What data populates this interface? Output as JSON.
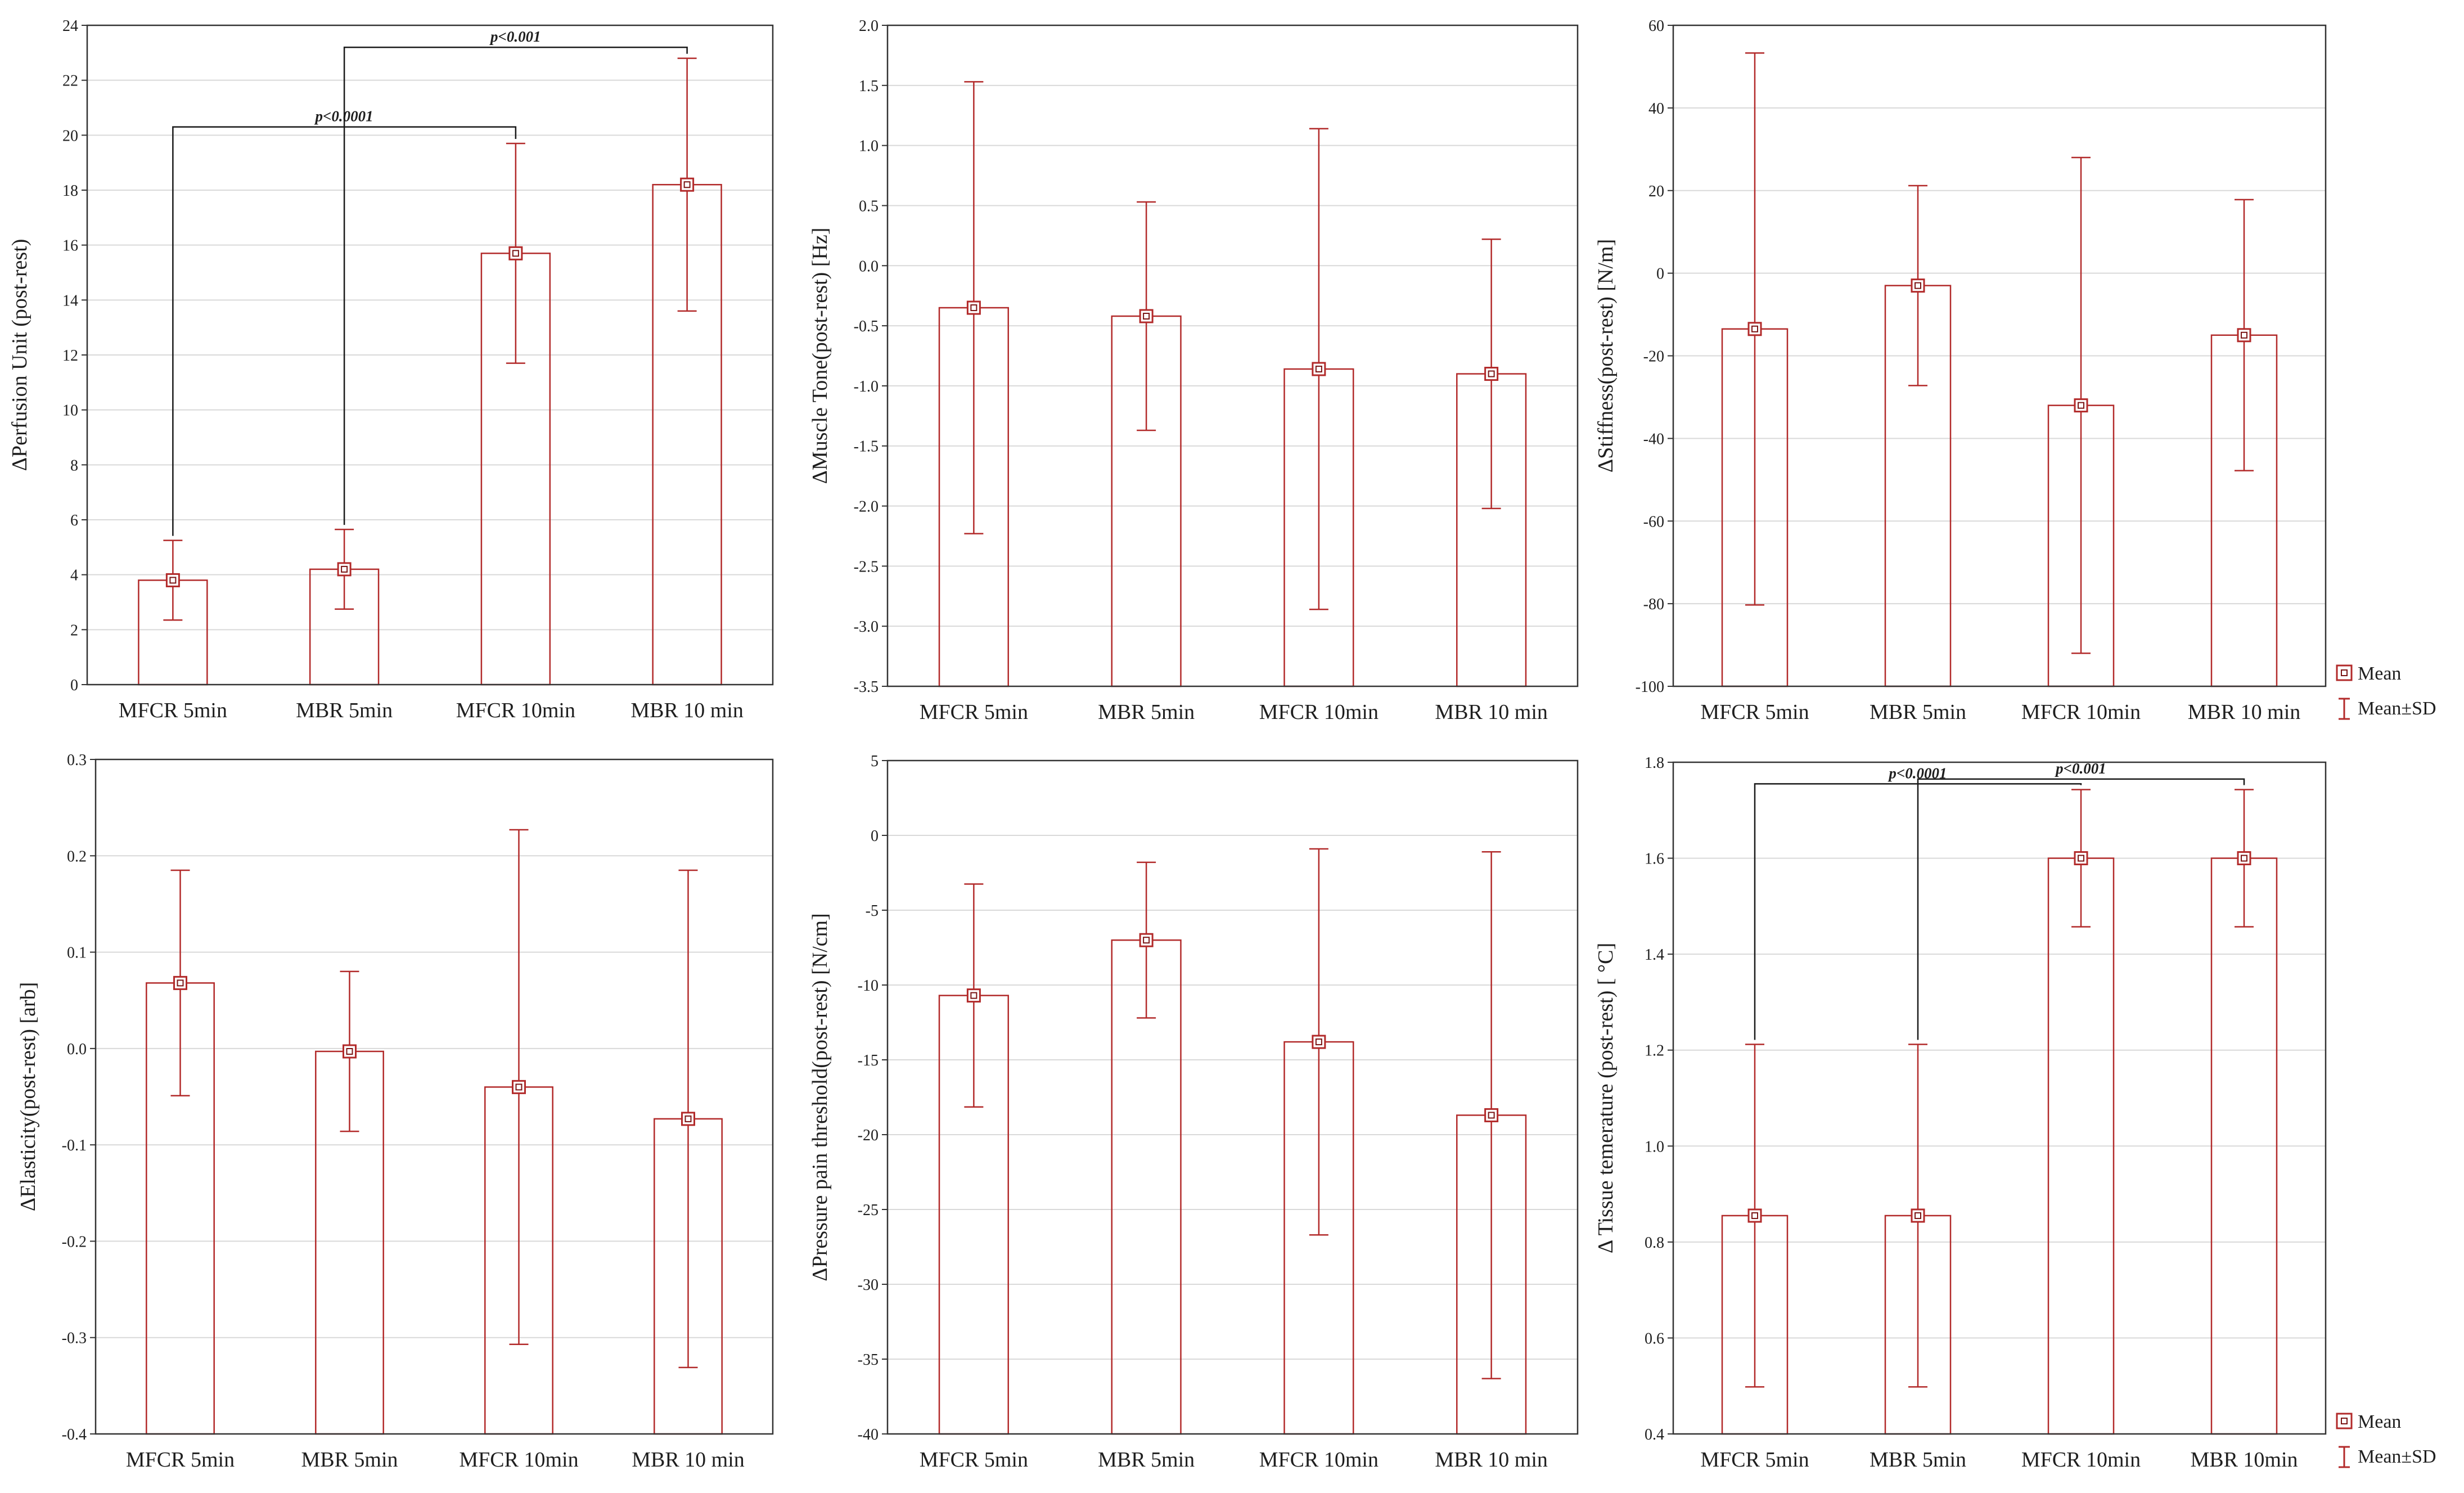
{
  "colors": {
    "series": "#b22a2a",
    "grid": "#d9d9d9",
    "axis": "#333333",
    "bracket": "#1a1a1a"
  },
  "legend": {
    "mean": "Mean",
    "sd": "Mean±SD"
  },
  "chart_data": [
    {
      "type": "bar",
      "ylabel": "ΔPerfusion Unit (post-rest)",
      "categories": [
        "MFCR 5min",
        "MBR 5min",
        "MFCR 10min",
        "MBR 10 min"
      ],
      "values": [
        3.8,
        4.2,
        15.7,
        18.2
      ],
      "sd": [
        1.45,
        1.45,
        4.0,
        4.6
      ],
      "ylim": [
        0,
        24
      ],
      "yticks": [
        0,
        2,
        4,
        6,
        8,
        10,
        12,
        14,
        16,
        18,
        20,
        22,
        24
      ],
      "tick_decimals": 0,
      "grid": true,
      "annotations": [
        {
          "from": 0,
          "to": 2,
          "y": 20.3,
          "label": "p<0.0001"
        },
        {
          "from": 1,
          "to": 3,
          "y": 23.2,
          "label": "p<0.001"
        }
      ]
    },
    {
      "type": "bar",
      "ylabel": "ΔMuscle Tone(post-rest) [Hz]",
      "categories": [
        "MFCR 5min",
        "MBR 5min",
        "MFCR 10min",
        "MBR 10 min"
      ],
      "values": [
        -0.35,
        -0.42,
        -0.86,
        -0.9
      ],
      "sd": [
        1.88,
        0.95,
        2.0,
        1.12
      ],
      "ylim": [
        -3.5,
        2.0
      ],
      "yticks": [
        -3.5,
        -3.0,
        -2.5,
        -2.0,
        -1.5,
        -1.0,
        -0.5,
        0.0,
        0.5,
        1.0,
        1.5,
        2.0
      ],
      "tick_decimals": 1,
      "grid": true,
      "annotations": []
    },
    {
      "type": "bar",
      "ylabel": "ΔStiffness(post-rest) [N/m]",
      "categories": [
        "MFCR 5min",
        "MBR 5min",
        "MFCR 10min",
        "MBR 10 min"
      ],
      "values": [
        -13.5,
        -3.0,
        -32.0,
        -15.0
      ],
      "sd": [
        66.8,
        24.2,
        60.0,
        32.8
      ],
      "ylim": [
        -100,
        60
      ],
      "yticks": [
        -100,
        -80,
        -60,
        -40,
        -20,
        0,
        20,
        40,
        60
      ],
      "tick_decimals": 0,
      "grid": true,
      "annotations": []
    },
    {
      "type": "bar",
      "ylabel": "ΔElasticity(post-rest) [arb]",
      "categories": [
        "MFCR 5min",
        "MBR 5min",
        "MFCR 10min",
        "MBR 10 min"
      ],
      "values": [
        0.068,
        -0.003,
        -0.04,
        -0.073
      ],
      "sd": [
        0.117,
        0.083,
        0.267,
        0.258
      ],
      "ylim": [
        -0.4,
        0.3
      ],
      "yticks": [
        -0.4,
        -0.3,
        -0.2,
        -0.1,
        0.0,
        0.1,
        0.2,
        0.3
      ],
      "tick_decimals": 1,
      "grid": true,
      "annotations": []
    },
    {
      "type": "bar",
      "ylabel": "ΔPressure pain threshold(post-rest) [N/cm]",
      "categories": [
        "MFCR 5min",
        "MBR 5min",
        "MFCR 10min",
        "MBR 10 min"
      ],
      "values": [
        -10.7,
        -7.0,
        -13.8,
        -18.7
      ],
      "sd": [
        7.45,
        5.2,
        12.9,
        17.6
      ],
      "ylim": [
        -40,
        5
      ],
      "yticks": [
        -40,
        -35,
        -30,
        -25,
        -20,
        -15,
        -10,
        -5,
        0,
        5
      ],
      "tick_decimals": 0,
      "grid": true,
      "annotations": []
    },
    {
      "type": "bar",
      "ylabel": "Δ Tissue temerature (post-rest) [ °C]",
      "categories": [
        "MFCR 5min",
        "MBR 5min",
        "MFCR 10min",
        "MBR 10min"
      ],
      "values": [
        0.855,
        0.855,
        1.6,
        1.6
      ],
      "sd": [
        0.357,
        0.357,
        0.143,
        0.143
      ],
      "ylim": [
        0.4,
        1.8
      ],
      "yticks": [
        0.4,
        0.6,
        0.8,
        1.0,
        1.2,
        1.4,
        1.6,
        1.8
      ],
      "tick_decimals": 1,
      "grid": true,
      "annotations": [
        {
          "from": 0,
          "to": 2,
          "y": 1.755,
          "label": "p<0.0001"
        },
        {
          "from": 1,
          "to": 3,
          "y": 1.765,
          "label": "p<0.001"
        }
      ]
    }
  ]
}
